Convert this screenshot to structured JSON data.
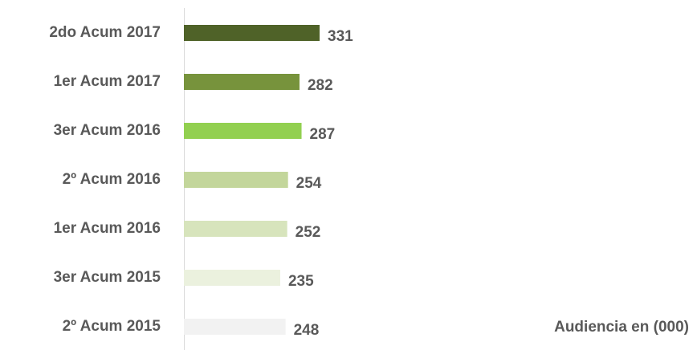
{
  "chart_data": {
    "type": "bar",
    "orientation": "horizontal",
    "categories": [
      "2do Acum 2017",
      "1er Acum 2017",
      "3er Acum 2016",
      "2º Acum 2016",
      "1er Acum 2016",
      "3er Acum 2015",
      "2º Acum 2015"
    ],
    "values": [
      331,
      282,
      287,
      254,
      252,
      235,
      248
    ],
    "colors": [
      "#4f6228",
      "#77933c",
      "#92d050",
      "#c3d69b",
      "#d7e4bc",
      "#ebf1de",
      "#f2f2f2"
    ],
    "x_label": "Audiencia en (000)"
  }
}
